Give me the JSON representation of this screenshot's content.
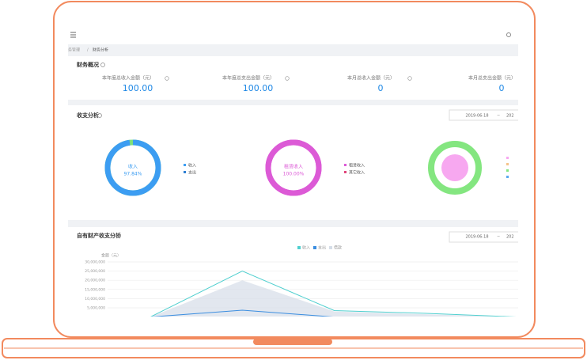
{
  "breadcrumb": {
    "parent": "务管理",
    "separator": "/",
    "current": "财务分析"
  },
  "overview": {
    "title": "财务概况",
    "stats": [
      {
        "label": "本年度总收入金额（元）",
        "value": "100.00"
      },
      {
        "label": "本年度总支出金额（元）",
        "value": "100.00"
      },
      {
        "label": "本月总收入金额（元）",
        "value": "0"
      },
      {
        "label": "本月总支出金额（元）",
        "value": "0"
      }
    ]
  },
  "analysis": {
    "title": "收支分析",
    "date_start": "2019-06-18",
    "date_sep": "~",
    "date_end": "202",
    "donuts": [
      {
        "center_label": "收入",
        "percent": 97.84,
        "percent_label": "97.84%",
        "legend": [
          "收入",
          "支出"
        ]
      },
      {
        "center_label": "租赁收入",
        "percent": 100,
        "percent_label": "100.00%",
        "legend": [
          "租赁收入",
          "其它收入"
        ]
      }
    ]
  },
  "assets": {
    "title": "自有财产收支分析",
    "date_start": "2019-06-18",
    "date_sep": "~",
    "date_end": "202",
    "y_label": "金额（元）",
    "ylim": [
      0,
      30000000
    ],
    "yticks": [
      {
        "value": 5000000,
        "label": "5,000,000"
      },
      {
        "value": 10000000,
        "label": "10,000,000"
      },
      {
        "value": 15000000,
        "label": "15,000,000"
      },
      {
        "value": 20000000,
        "label": "20,000,000"
      },
      {
        "value": 25000000,
        "label": "25,000,000"
      },
      {
        "value": 30000000,
        "label": "30,000,000"
      }
    ],
    "series": [
      {
        "name": "收入",
        "color": "#4fcfcf",
        "values": [
          0,
          25000000,
          3500000,
          2000000,
          0
        ]
      },
      {
        "name": "支出",
        "color": "#3b8ee0",
        "values": [
          0,
          3700000,
          0,
          0,
          0
        ]
      },
      {
        "name": "借款",
        "color": "#d5dde8",
        "values": [
          0,
          20000000,
          3000000,
          1500000,
          0
        ]
      }
    ]
  }
}
